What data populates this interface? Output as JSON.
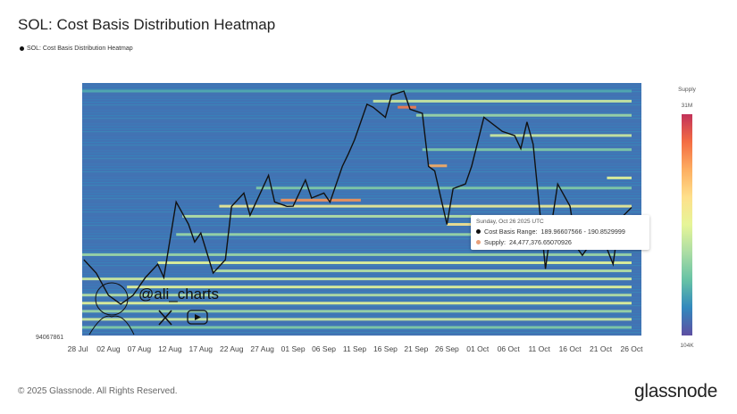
{
  "header": {
    "title": "SOL: Cost Basis Distribution Heatmap",
    "legend_label": "SOL: Cost Basis Distribution Heatmap"
  },
  "footer": {
    "copyright": "© 2025 Glassnode. All Rights Reserved.",
    "brand": "glassnode"
  },
  "watermark": {
    "handle": "@ali_charts",
    "icons": [
      "x-logo-icon",
      "youtube-icon"
    ]
  },
  "tooltip": {
    "date": "Sunday, Oct 26 2025 UTC",
    "range_label": "Cost Basis Range:",
    "range_value": "189.96607566 - 190.8529999",
    "supply_label": "Supply:",
    "supply_value": "24,477,376.65070926",
    "range_color": "#111111",
    "supply_color": "#e8a07a"
  },
  "chart_data": {
    "type": "heatmap",
    "title": "SOL: Cost Basis Distribution Heatmap",
    "x_ticks": [
      "28 Jul",
      "02 Aug",
      "07 Aug",
      "12 Aug",
      "17 Aug",
      "22 Aug",
      "27 Aug",
      "01 Sep",
      "06 Sep",
      "11 Sep",
      "16 Sep",
      "21 Sep",
      "26 Sep",
      "01 Oct",
      "06 Oct",
      "11 Oct",
      "16 Oct",
      "21 Oct",
      "26 Oct"
    ],
    "y_label_bottom": "94067861",
    "xlim": [
      "2025-07-28",
      "2025-10-26"
    ],
    "ylim": [
      127,
      252
    ],
    "colorbar": {
      "title": "Supply",
      "max_label": "31M",
      "min_label": "104K",
      "colors": [
        "#5e4fa2",
        "#3288bd",
        "#66c2a5",
        "#abdda4",
        "#e6f598",
        "#fee08b",
        "#fdae61",
        "#f46d43",
        "#c2325a"
      ]
    },
    "price_line": {
      "color": "#111111",
      "points": [
        [
          "2025-07-29",
          164.5
        ],
        [
          "2025-07-31",
          157.9
        ],
        [
          "2025-08-02",
          146.9
        ],
        [
          "2025-08-04",
          142.5
        ],
        [
          "2025-08-06",
          146.9
        ],
        [
          "2025-08-08",
          155.7
        ],
        [
          "2025-08-10",
          162.3
        ],
        [
          "2025-08-11",
          155.7
        ],
        [
          "2025-08-13",
          193.1
        ],
        [
          "2025-08-15",
          182.1
        ],
        [
          "2025-08-16",
          173.3
        ],
        [
          "2025-08-17",
          177.7
        ],
        [
          "2025-08-19",
          157.9
        ],
        [
          "2025-08-21",
          164.5
        ],
        [
          "2025-08-22",
          190.9
        ],
        [
          "2025-08-24",
          197.5
        ],
        [
          "2025-08-25",
          186.5
        ],
        [
          "2025-08-27",
          199.7
        ],
        [
          "2025-08-28",
          206.3
        ],
        [
          "2025-08-29",
          193.1
        ],
        [
          "2025-08-31",
          190.9
        ],
        [
          "2025-09-01",
          191
        ],
        [
          "2025-09-03",
          204
        ],
        [
          "2025-09-04",
          195
        ],
        [
          "2025-09-06",
          197.5
        ],
        [
          "2025-09-07",
          193
        ],
        [
          "2025-09-09",
          210.7
        ],
        [
          "2025-09-10",
          217
        ],
        [
          "2025-09-11",
          224
        ],
        [
          "2025-09-13",
          241.5
        ],
        [
          "2025-09-14",
          240
        ],
        [
          "2025-09-16",
          235
        ],
        [
          "2025-09-17",
          246
        ],
        [
          "2025-09-19",
          248
        ],
        [
          "2025-09-20",
          239
        ],
        [
          "2025-09-22",
          237
        ],
        [
          "2025-09-23",
          210.7
        ],
        [
          "2025-09-24",
          208.5
        ],
        [
          "2025-09-26",
          182
        ],
        [
          "2025-09-27",
          199.7
        ],
        [
          "2025-09-29",
          202
        ],
        [
          "2025-09-30",
          210.7
        ],
        [
          "2025-10-02",
          235
        ],
        [
          "2025-10-05",
          228
        ],
        [
          "2025-10-07",
          226
        ],
        [
          "2025-10-08",
          219.5
        ],
        [
          "2025-10-09",
          232.7
        ],
        [
          "2025-10-10",
          221.7
        ],
        [
          "2025-10-12",
          160
        ],
        [
          "2025-10-13",
          182
        ],
        [
          "2025-10-14",
          202
        ],
        [
          "2025-10-16",
          191
        ],
        [
          "2025-10-17",
          171
        ],
        [
          "2025-10-18",
          166.7
        ],
        [
          "2025-10-20",
          175.5
        ],
        [
          "2025-10-21",
          177.7
        ],
        [
          "2025-10-23",
          162.3
        ],
        [
          "2025-10-24",
          184.3
        ],
        [
          "2025-10-26",
          190.4
        ]
      ]
    },
    "background_intensity": 0.08,
    "bands": [
      {
        "price": 248,
        "from": "2025-07-28",
        "to": "2025-10-26",
        "intensity": 0.2
      },
      {
        "price": 243,
        "from": "2025-09-14",
        "to": "2025-10-26",
        "intensity": 0.45
      },
      {
        "price": 240,
        "from": "2025-09-18",
        "to": "2025-09-21",
        "intensity": 0.85
      },
      {
        "price": 236,
        "from": "2025-09-21",
        "to": "2025-10-26",
        "intensity": 0.35
      },
      {
        "price": 226,
        "from": "2025-10-03",
        "to": "2025-10-26",
        "intensity": 0.45
      },
      {
        "price": 219,
        "from": "2025-09-22",
        "to": "2025-10-26",
        "intensity": 0.3
      },
      {
        "price": 211,
        "from": "2025-09-23",
        "to": "2025-09-26",
        "intensity": 0.75
      },
      {
        "price": 205,
        "from": "2025-10-22",
        "to": "2025-10-26",
        "intensity": 0.5
      },
      {
        "price": 200,
        "from": "2025-08-26",
        "to": "2025-10-26",
        "intensity": 0.3
      },
      {
        "price": 194,
        "from": "2025-08-30",
        "to": "2025-09-12",
        "intensity": 0.8
      },
      {
        "price": 191,
        "from": "2025-08-20",
        "to": "2025-10-26",
        "intensity": 0.55
      },
      {
        "price": 186,
        "from": "2025-08-14",
        "to": "2025-10-26",
        "intensity": 0.4
      },
      {
        "price": 182,
        "from": "2025-09-26",
        "to": "2025-10-26",
        "intensity": 0.6
      },
      {
        "price": 177,
        "from": "2025-08-13",
        "to": "2025-10-26",
        "intensity": 0.35
      },
      {
        "price": 173,
        "from": "2025-10-01",
        "to": "2025-10-26",
        "intensity": 0.55
      },
      {
        "price": 167,
        "from": "2025-07-28",
        "to": "2025-10-26",
        "intensity": 0.35
      },
      {
        "price": 163,
        "from": "2025-08-10",
        "to": "2025-10-26",
        "intensity": 0.5
      },
      {
        "price": 159,
        "from": "2025-08-19",
        "to": "2025-10-26",
        "intensity": 0.4
      },
      {
        "price": 155,
        "from": "2025-07-28",
        "to": "2025-10-26",
        "intensity": 0.45
      },
      {
        "price": 151,
        "from": "2025-08-05",
        "to": "2025-10-26",
        "intensity": 0.5
      },
      {
        "price": 147,
        "from": "2025-07-28",
        "to": "2025-10-26",
        "intensity": 0.4
      },
      {
        "price": 143,
        "from": "2025-07-28",
        "to": "2025-10-26",
        "intensity": 0.5
      },
      {
        "price": 139,
        "from": "2025-07-28",
        "to": "2025-10-26",
        "intensity": 0.35
      },
      {
        "price": 135,
        "from": "2025-07-28",
        "to": "2025-10-26",
        "intensity": 0.45
      },
      {
        "price": 131,
        "from": "2025-07-28",
        "to": "2025-10-26",
        "intensity": 0.3
      }
    ]
  }
}
